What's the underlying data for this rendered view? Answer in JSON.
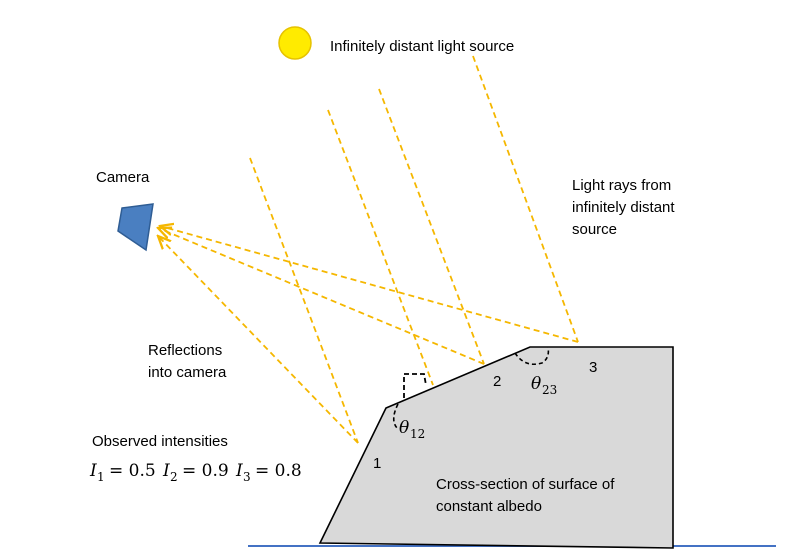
{
  "labels": {
    "light_source": "Infinitely distant light source",
    "camera": "Camera",
    "rays_line1": "Light rays from",
    "rays_line2": "infinitely distant",
    "rays_line3": "source",
    "reflections_line1": "Reflections",
    "reflections_line2": "into camera",
    "observed": "Observed intensities",
    "surface_line1": "Cross-section of surface of",
    "surface_line2": "constant albedo",
    "point1": "1",
    "point2": "2",
    "point3": "3"
  },
  "angles": {
    "theta12_symbol": "θ",
    "theta12_sub": "12",
    "theta23_symbol": "θ",
    "theta23_sub": "23"
  },
  "intensities": [
    {
      "symbol": "I",
      "sub": "1",
      "value": "= 0.5"
    },
    {
      "symbol": "I",
      "sub": "2",
      "value": "= 0.9"
    },
    {
      "symbol": "I",
      "sub": "3",
      "value": "= 0.8"
    }
  ],
  "colors": {
    "sun": "#ffeb00",
    "sun_stroke": "#e6c200",
    "ray": "#f5b700",
    "camera": "#4a7fc1",
    "surface_fill": "#d9d9d9",
    "ground": "#4472c4"
  }
}
